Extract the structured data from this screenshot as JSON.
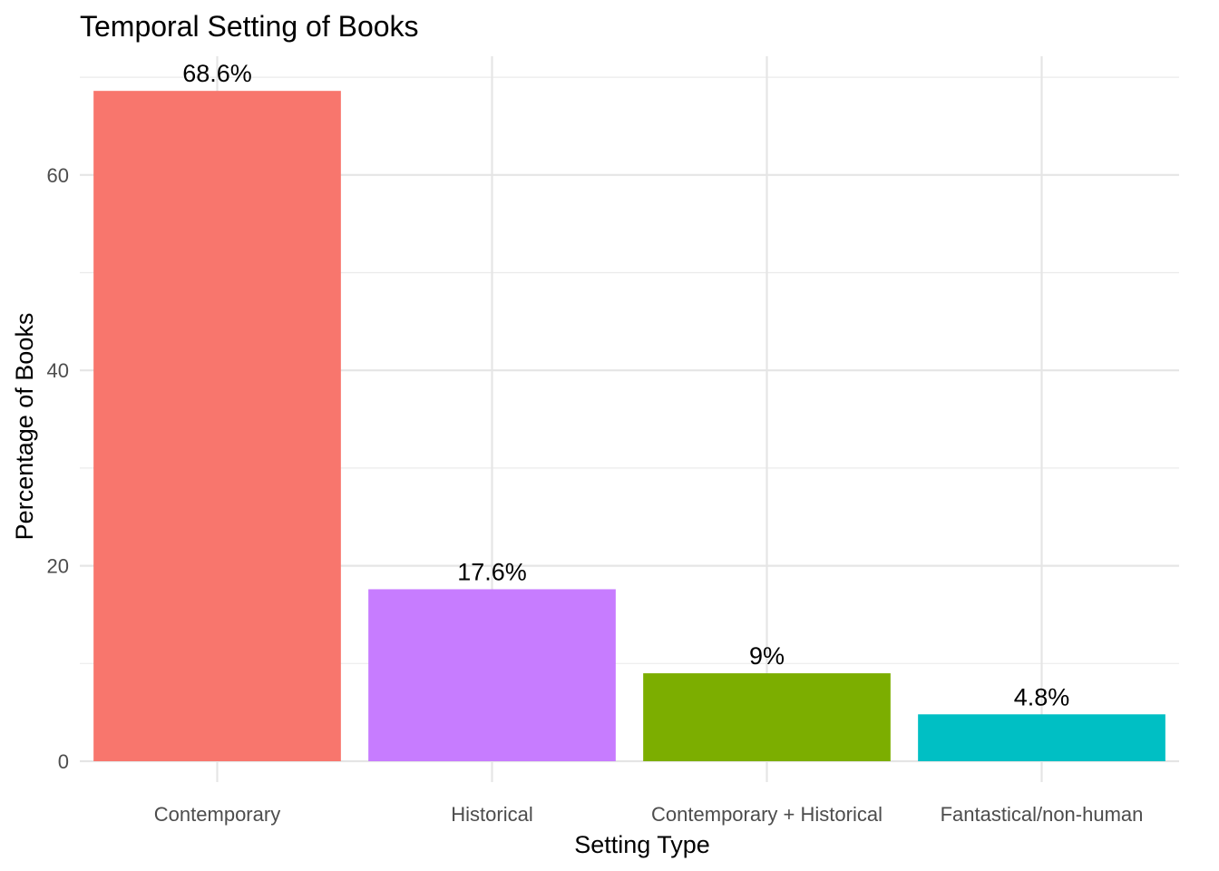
{
  "chart_data": {
    "type": "bar",
    "title": "Temporal Setting of Books",
    "xlabel": "Setting Type",
    "ylabel": "Percentage of Books",
    "categories": [
      "Contemporary",
      "Historical",
      "Contemporary + Historical",
      "Fantastical/non-human"
    ],
    "values": [
      68.6,
      17.6,
      9,
      4.8
    ],
    "data_labels": [
      "68.6%",
      "17.6%",
      "9%",
      "4.8%"
    ],
    "colors": [
      "#F8766D",
      "#C77CFF",
      "#7CAE00",
      "#00BFC4"
    ],
    "ylim": [
      0,
      72
    ],
    "yticks": [
      0,
      20,
      40,
      60
    ],
    "grid": true,
    "legend": "none"
  }
}
